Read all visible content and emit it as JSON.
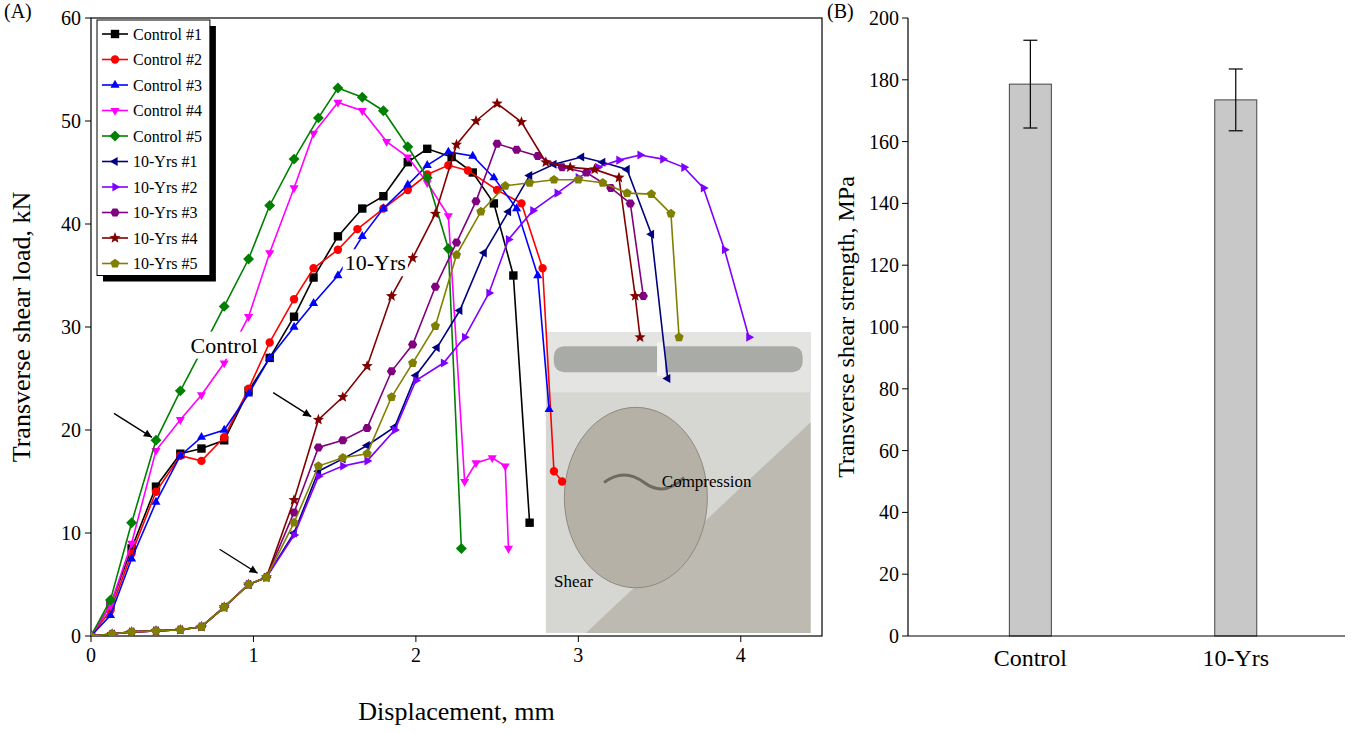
{
  "chart_data": [
    {
      "type": "line",
      "panel_label": "(A)",
      "x_label": "Displacement, mm",
      "y_label": "Transverse shear load, kN",
      "xlim": [
        0,
        4.5
      ],
      "xticks": [
        0,
        1,
        2,
        3,
        4
      ],
      "ylim": [
        0,
        60
      ],
      "yticks": [
        0,
        10,
        20,
        30,
        40,
        50,
        60
      ],
      "legend": "upper left",
      "series": [
        {
          "name": "Control #1",
          "color": "#000000",
          "marker": "square",
          "x": [
            0,
            0.12,
            0.25,
            0.4,
            0.55,
            0.68,
            0.82,
            0.97,
            1.1,
            1.25,
            1.37,
            1.52,
            1.67,
            1.8,
            1.95,
            2.07,
            2.22,
            2.35,
            2.48,
            2.6,
            2.7
          ],
          "values": [
            0,
            3,
            8.5,
            14.5,
            17.7,
            18.2,
            19,
            23.8,
            27,
            31,
            34.8,
            38.8,
            41.5,
            42.7,
            46,
            47.3,
            46.5,
            45,
            42,
            35,
            11
          ]
        },
        {
          "name": "Control #2",
          "color": "#ff0000",
          "marker": "circle",
          "x": [
            0,
            0.12,
            0.25,
            0.4,
            0.55,
            0.68,
            0.82,
            0.97,
            1.1,
            1.25,
            1.37,
            1.52,
            1.64,
            1.8,
            1.95,
            2.07,
            2.2,
            2.32,
            2.5,
            2.65,
            2.78,
            2.85,
            2.9
          ],
          "values": [
            0,
            2.5,
            8,
            14,
            17.5,
            17,
            19.3,
            24,
            28.5,
            32.7,
            35.7,
            37.5,
            39.5,
            41.5,
            43.3,
            44.8,
            45.7,
            45.2,
            43.3,
            42,
            35.7,
            16,
            15
          ]
        },
        {
          "name": "Control #3",
          "color": "#0000ff",
          "marker": "triangle-up",
          "x": [
            0,
            0.12,
            0.25,
            0.4,
            0.55,
            0.68,
            0.82,
            0.97,
            1.1,
            1.25,
            1.37,
            1.52,
            1.67,
            1.8,
            1.95,
            2.07,
            2.2,
            2.35,
            2.48,
            2.62,
            2.75,
            2.82
          ],
          "values": [
            0,
            2,
            7.5,
            13,
            17.5,
            19.3,
            20,
            23.5,
            27,
            30,
            32.3,
            35,
            38.8,
            41.5,
            43.8,
            45.7,
            47,
            46.6,
            44.5,
            41.5,
            35,
            22
          ]
        },
        {
          "name": "Control #4",
          "color": "#ff00ff",
          "marker": "triangle-down",
          "x": [
            0,
            0.12,
            0.25,
            0.4,
            0.55,
            0.68,
            0.82,
            0.97,
            1.1,
            1.25,
            1.37,
            1.52,
            1.67,
            1.82,
            1.95,
            2.07,
            2.2,
            2.3,
            2.37,
            2.47,
            2.55,
            2.57
          ],
          "values": [
            0,
            3,
            9,
            18,
            21,
            23.4,
            26.5,
            31,
            37.2,
            43.5,
            48.8,
            51.8,
            51,
            48,
            46.5,
            44,
            40.8,
            15,
            16.8,
            17.3,
            16.5,
            8.5
          ]
        },
        {
          "name": "Control #5",
          "color": "#008000",
          "marker": "diamond",
          "x": [
            0,
            0.12,
            0.25,
            0.4,
            0.55,
            0.68,
            0.82,
            0.97,
            1.1,
            1.25,
            1.4,
            1.52,
            1.67,
            1.8,
            1.95,
            2.07,
            2.2,
            2.28
          ],
          "values": [
            0,
            3.5,
            11,
            19,
            23.8,
            27.7,
            32,
            36.6,
            41.8,
            46.3,
            50.3,
            53.2,
            52.3,
            51,
            47.5,
            44.5,
            37.6,
            8.5
          ]
        },
        {
          "name": "10-Yrs #1",
          "color": "#000080",
          "marker": "triangle-left",
          "x": [
            0,
            0.13,
            0.25,
            0.4,
            0.55,
            0.68,
            0.82,
            0.97,
            1.08,
            1.25,
            1.4,
            1.55,
            1.7,
            1.87,
            2.0,
            2.13,
            2.27,
            2.42,
            2.57,
            2.7,
            2.85,
            3.02,
            3.15,
            3.3,
            3.45,
            3.55
          ],
          "values": [
            0,
            0.2,
            0.4,
            0.5,
            0.6,
            0.9,
            2.8,
            5,
            5.7,
            10,
            16,
            17.2,
            18.5,
            20.3,
            25.3,
            28,
            31.6,
            37.2,
            41.2,
            44.7,
            45.8,
            46.5,
            46,
            45.3,
            39,
            25
          ]
        },
        {
          "name": "10-Yrs #2",
          "color": "#8000ff",
          "marker": "triangle-right",
          "x": [
            0,
            0.13,
            0.25,
            0.4,
            0.55,
            0.68,
            0.82,
            0.97,
            1.08,
            1.25,
            1.4,
            1.55,
            1.7,
            1.87,
            2.0,
            2.17,
            2.3,
            2.45,
            2.57,
            2.72,
            2.87,
            3.0,
            3.12,
            3.25,
            3.38,
            3.52,
            3.65,
            3.77,
            3.9,
            4.05
          ],
          "values": [
            0,
            0.2,
            0.4,
            0.5,
            0.6,
            0.9,
            2.8,
            5,
            5.7,
            9.8,
            15.5,
            16.5,
            17,
            20,
            24.8,
            26.5,
            29,
            33.3,
            38.5,
            41.3,
            43,
            44.5,
            45.5,
            46.2,
            46.7,
            46.3,
            45.5,
            43.5,
            37.5,
            29
          ]
        },
        {
          "name": "10-Yrs #3",
          "color": "#800080",
          "marker": "hexagon",
          "x": [
            0,
            0.13,
            0.25,
            0.4,
            0.55,
            0.68,
            0.82,
            0.97,
            1.08,
            1.25,
            1.4,
            1.55,
            1.7,
            1.85,
            1.98,
            2.12,
            2.25,
            2.37,
            2.5,
            2.62,
            2.75,
            2.9,
            3.05,
            3.2,
            3.32,
            3.4
          ],
          "values": [
            0,
            0.2,
            0.4,
            0.5,
            0.6,
            0.9,
            2.8,
            5,
            5.7,
            12,
            18.3,
            19,
            20.2,
            25.7,
            28.3,
            33.9,
            38.2,
            42.2,
            47.8,
            47.2,
            46.6,
            45.5,
            45,
            43.5,
            42,
            33
          ]
        },
        {
          "name": "10-Yrs #4",
          "color": "#800000",
          "marker": "star",
          "x": [
            0,
            0.13,
            0.25,
            0.4,
            0.55,
            0.68,
            0.82,
            0.97,
            1.08,
            1.25,
            1.4,
            1.55,
            1.7,
            1.85,
            1.98,
            2.12,
            2.25,
            2.37,
            2.5,
            2.65,
            2.8,
            2.95,
            3.1,
            3.25,
            3.35,
            3.38
          ],
          "values": [
            0,
            0.2,
            0.4,
            0.5,
            0.6,
            0.9,
            2.8,
            5,
            5.7,
            13.2,
            21,
            23.2,
            26.2,
            33,
            36.7,
            41,
            47.7,
            50,
            51.7,
            49.9,
            46,
            45.5,
            45.3,
            44.5,
            33,
            29
          ]
        },
        {
          "name": "10-Yrs #5",
          "color": "#808000",
          "marker": "pentagon",
          "x": [
            0,
            0.13,
            0.25,
            0.4,
            0.55,
            0.68,
            0.82,
            0.97,
            1.08,
            1.25,
            1.4,
            1.55,
            1.7,
            1.85,
            1.98,
            2.12,
            2.25,
            2.4,
            2.55,
            2.7,
            2.85,
            3.0,
            3.15,
            3.3,
            3.45,
            3.57,
            3.62
          ],
          "values": [
            0,
            0.2,
            0.4,
            0.5,
            0.6,
            0.9,
            2.8,
            5,
            5.7,
            11,
            16.5,
            17.3,
            17.7,
            23.2,
            26.5,
            30.1,
            37,
            41.2,
            43.7,
            44,
            44.3,
            44.3,
            44,
            43,
            42.9,
            41,
            29
          ]
        }
      ],
      "annotations": [
        {
          "text": "Control",
          "x": 0.82,
          "y": 28
        },
        {
          "text": "10-Yrs",
          "x": 1.75,
          "y": 36
        },
        {
          "text": "Compression",
          "x": 3.79,
          "y": 14.8
        },
        {
          "text": "Shear",
          "x": 2.97,
          "y": 5.1
        }
      ]
    },
    {
      "type": "bar",
      "panel_label": "(B)",
      "y_label": "Transverse shear strength, MPa",
      "categories": [
        "Control",
        "10-Yrs"
      ],
      "values": [
        178.6,
        173.5
      ],
      "errors": [
        14.2,
        10.0
      ],
      "color": "#c8c8c8",
      "ylim": [
        0,
        200
      ],
      "yticks": [
        0,
        20,
        40,
        60,
        80,
        100,
        120,
        140,
        160,
        180,
        200
      ]
    }
  ]
}
